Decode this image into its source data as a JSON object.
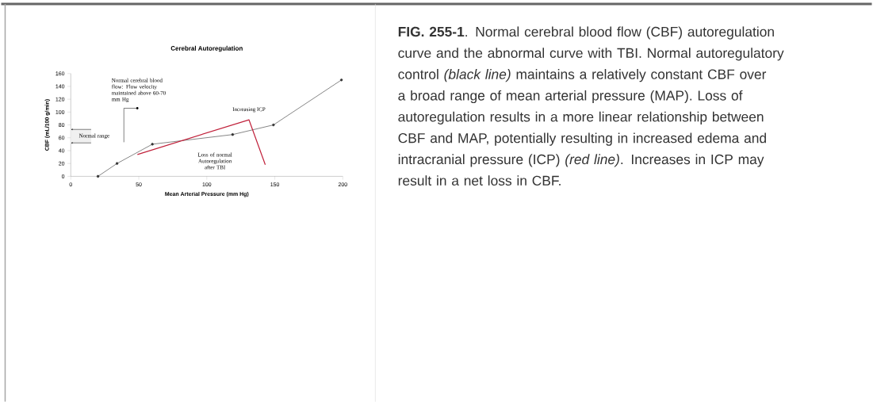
{
  "chart_data": {
    "type": "line",
    "title": "Cerebral Autoregulation",
    "xlabel": "Mean Arterial Pressure (mm Hg)",
    "ylabel": "CBF (mL/100 g/min)",
    "xlim": [
      0,
      200
    ],
    "ylim": [
      0,
      160
    ],
    "xticks": [
      0,
      50,
      100,
      150,
      200
    ],
    "yticks": [
      0,
      20,
      40,
      60,
      80,
      100,
      120,
      140,
      160
    ],
    "series": [
      {
        "color": "#333333",
        "marker": "circle",
        "x": [
          20,
          34,
          60,
          119,
          149,
          199
        ],
        "values": [
          0,
          20,
          50,
          65,
          80,
          150
        ]
      },
      {
        "color": "#c0203a",
        "marker": "none",
        "x": [
          49,
          131,
          143
        ],
        "values": [
          34,
          88,
          18
        ]
      }
    ],
    "bands": [
      {
        "axis": "y",
        "from": 52,
        "to": 73,
        "label": "Normal range"
      }
    ],
    "annotations": [
      "**FIG. 255-1**. Normal cerebral blood flow (CBF) autoregulation curve and the abnormal curve with TBI. Normal autoregulatory control *(black line)* maintains a relatively constant CBF over a broad range of mean arterial pressure (MAP). Loss of autoregulation results in a more linear relationship between CBF and MAP, potentially resulting in increased edema and intracranial pressure (ICP) *(red line)*. Increases in ICP may result in a net loss in CBF.",
      "Normal cerebral blood flow: Flow velocity maintained above 60-70 mm Hg",
      {
        "text": "Increasing ICP",
        "x": 131,
        "y": 88
      },
      "Loss of normal Autoregulation after TBI"
    ]
  }
}
